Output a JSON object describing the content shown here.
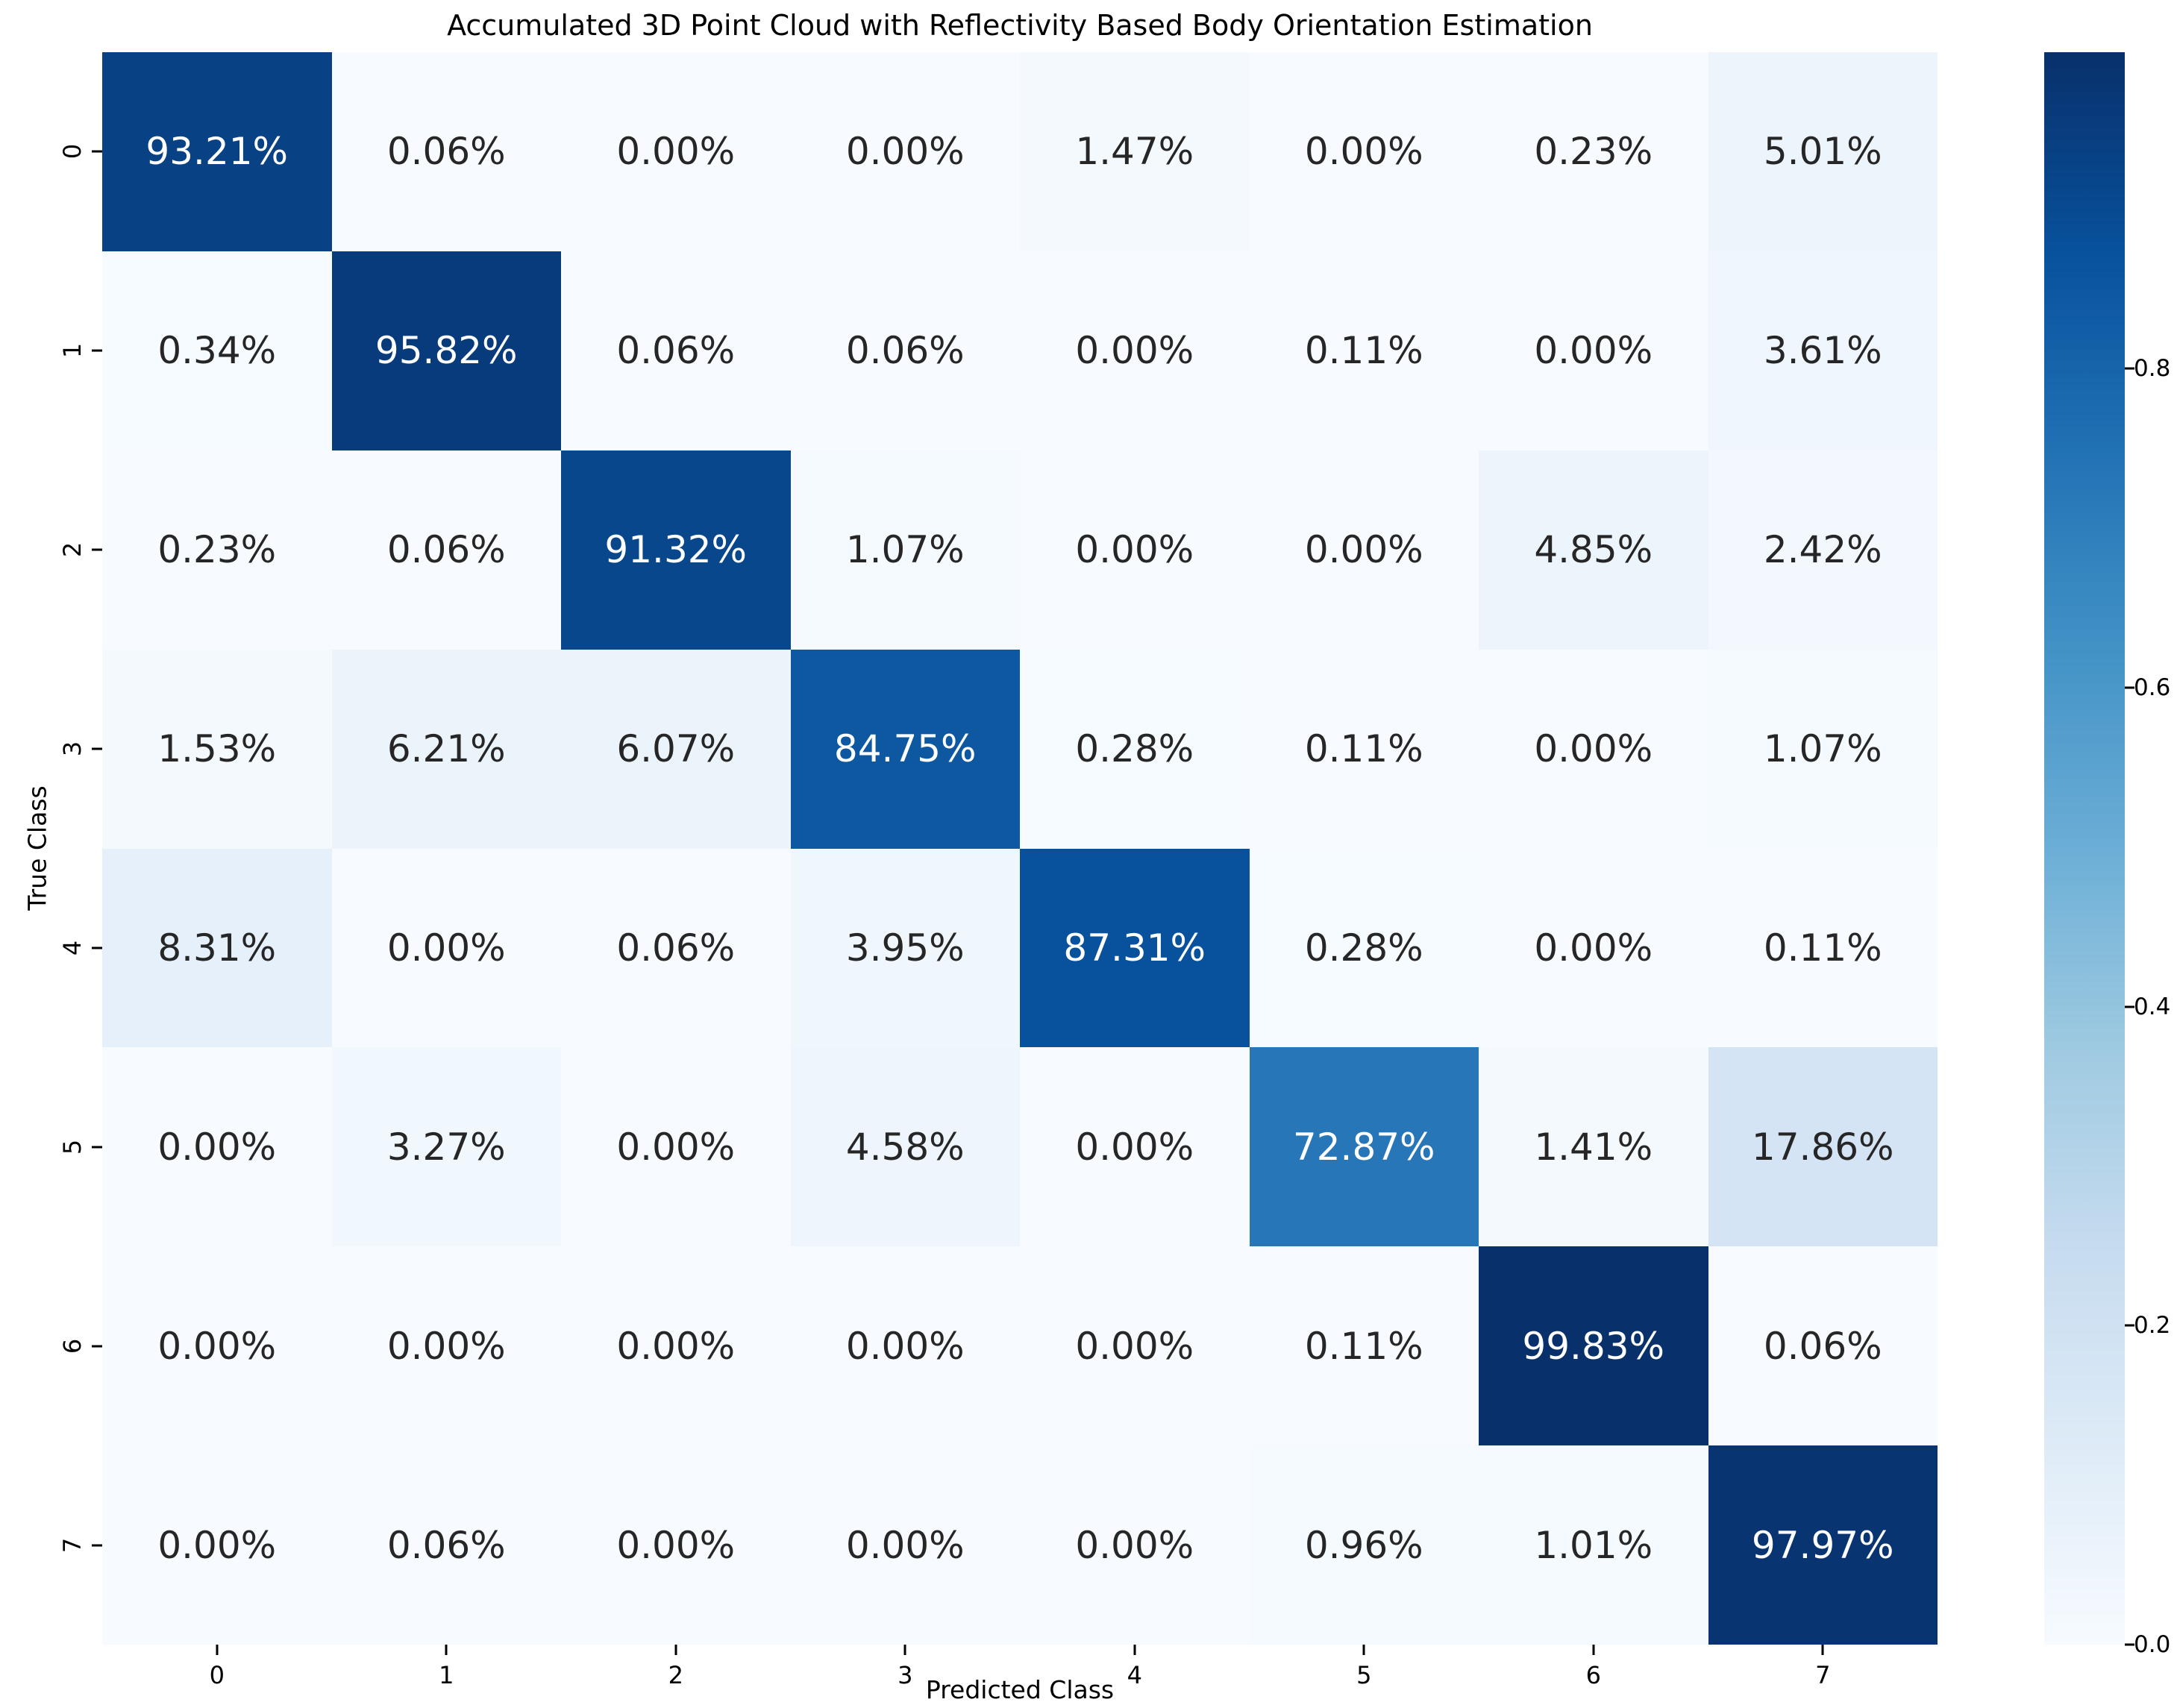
{
  "chart_data": {
    "type": "heatmap",
    "title": "Accumulated 3D Point Cloud with Reflectivity Based Body Orientation Estimation",
    "xlabel": "Predicted Class",
    "ylabel": "True Class",
    "x_tick_labels": [
      "0",
      "1",
      "2",
      "3",
      "4",
      "5",
      "6",
      "7"
    ],
    "y_tick_labels": [
      "0",
      "1",
      "2",
      "3",
      "4",
      "5",
      "6",
      "7"
    ],
    "values_percent": [
      [
        93.21,
        0.06,
        0.0,
        0.0,
        1.47,
        0.0,
        0.23,
        5.01
      ],
      [
        0.34,
        95.82,
        0.06,
        0.06,
        0.0,
        0.11,
        0.0,
        3.61
      ],
      [
        0.23,
        0.06,
        91.32,
        1.07,
        0.0,
        0.0,
        4.85,
        2.42
      ],
      [
        1.53,
        6.21,
        6.07,
        84.75,
        0.28,
        0.11,
        0.0,
        1.07
      ],
      [
        8.31,
        0.0,
        0.06,
        3.95,
        87.31,
        0.28,
        0.0,
        0.11
      ],
      [
        0.0,
        3.27,
        0.0,
        4.58,
        0.0,
        72.87,
        1.41,
        17.86
      ],
      [
        0.0,
        0.0,
        0.0,
        0.0,
        0.0,
        0.11,
        99.83,
        0.06
      ],
      [
        0.0,
        0.06,
        0.0,
        0.0,
        0.0,
        0.96,
        1.01,
        97.97
      ]
    ],
    "value_format": "percent-2dp",
    "grid": false,
    "legend": false,
    "colormap": "Blues",
    "vmin": 0.0,
    "vmax": 0.9983,
    "colorbar": {
      "position": "right",
      "tick_labels": [
        "0.0",
        "0.2",
        "0.4",
        "0.6",
        "0.8"
      ],
      "tick_values": [
        0.0,
        0.2,
        0.4,
        0.6,
        0.8
      ]
    },
    "colors": {
      "colormap_anchors": [
        "#f7fbff",
        "#deebf7",
        "#c6dbef",
        "#9ecae1",
        "#6baed6",
        "#4292c6",
        "#2171b5",
        "#08519c",
        "#08306b"
      ],
      "annot_text_dark": "#262626",
      "annot_text_light": "#ffffff",
      "axis_text": "#000000",
      "background": "#ffffff"
    }
  }
}
